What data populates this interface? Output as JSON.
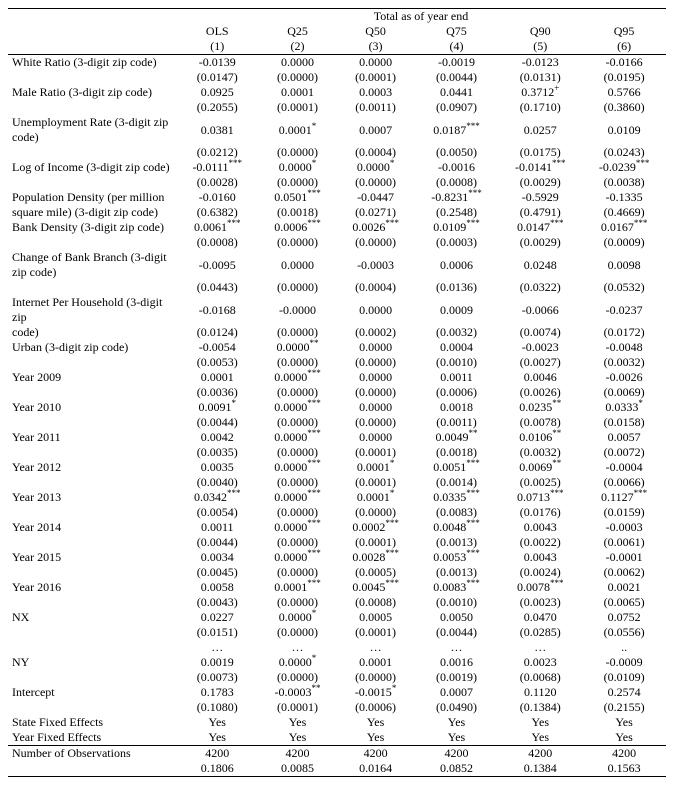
{
  "table": {
    "dependent_label": "Total as of year end",
    "columns": [
      {
        "head": "OLS",
        "num": "(1)"
      },
      {
        "head": "Q25",
        "num": "(2)"
      },
      {
        "head": "Q50",
        "num": "(3)"
      },
      {
        "head": "Q75",
        "num": "(4)"
      },
      {
        "head": "Q90",
        "num": "(5)"
      },
      {
        "head": "Q95",
        "num": "(6)"
      }
    ],
    "vars": [
      {
        "label": "White Ratio (3-digit zip code)",
        "b": [
          "-0.0139",
          "0.0000",
          "0.0000",
          "-0.0019",
          "-0.0123",
          "-0.0166"
        ],
        "se": [
          "(0.0147)",
          "(0.0000)",
          "(0.0001)",
          "(0.0044)",
          "(0.0131)",
          "(0.0195)"
        ],
        "sig": [
          "",
          "",
          "",
          "",
          "",
          ""
        ]
      },
      {
        "label": "Male Ratio (3-digit zip code)",
        "b": [
          "0.0925",
          "0.0001",
          "0.0003",
          "0.0441",
          "0.3712",
          "0.5766"
        ],
        "se": [
          "(0.2055)",
          "(0.0001)",
          "(0.0011)",
          "(0.0907)",
          "(0.1710)",
          "(0.3860)"
        ],
        "sig": [
          "",
          "",
          "",
          "",
          "+",
          ""
        ]
      },
      {
        "label": "Unemployment Rate (3-digit zip code)",
        "b": [
          "0.0381",
          "0.0001",
          "0.0007",
          "0.0187",
          "0.0257",
          "0.0109"
        ],
        "se": [
          "(0.0212)",
          "(0.0000)",
          "(0.0004)",
          "(0.0050)",
          "(0.0175)",
          "(0.0243)"
        ],
        "sig": [
          "",
          "*",
          "",
          "***",
          "",
          ""
        ]
      },
      {
        "label": "Log of Income (3-digit zip code)",
        "b": [
          "-0.0111",
          "0.0000",
          "0.0000",
          "-0.0016",
          "-0.0141",
          "-0.0239"
        ],
        "se": [
          "(0.0028)",
          "(0.0000)",
          "(0.0000)",
          "(0.0008)",
          "(0.0029)",
          "(0.0038)"
        ],
        "sig": [
          "***",
          "*",
          "*",
          "",
          "***",
          "***"
        ]
      },
      {
        "label": "Population Density (per million square mile) (3-digit zip code)",
        "b": [
          "-0.0160",
          "0.0501",
          "-0.0447",
          "-0.8231",
          "-0.5929",
          "-0.1335"
        ],
        "se": [
          "(0.6382)",
          "(0.0018)",
          "(0.0271)",
          "(0.2548)",
          "(0.4791)",
          "(0.4669)"
        ],
        "sig": [
          "",
          "***",
          "",
          "***",
          "",
          ""
        ]
      },
      {
        "label": "Bank Density (3-digit zip code)",
        "b": [
          "0.0061",
          "0.0006",
          "0.0026",
          "0.0109",
          "0.0147",
          "0.0167"
        ],
        "se": [
          "(0.0008)",
          "(0.0000)",
          "(0.0000)",
          "(0.0003)",
          "(0.0029)",
          "(0.0009)"
        ],
        "sig": [
          "***",
          "***",
          "***",
          "***",
          "***",
          "***"
        ]
      },
      {
        "label": "Change of Bank Branch (3-digit zip code)",
        "b": [
          "-0.0095",
          "0.0000",
          "-0.0003",
          "0.0006",
          "0.0248",
          "0.0098"
        ],
        "se": [
          "(0.0443)",
          "(0.0000)",
          "(0.0004)",
          "(0.0136)",
          "(0.0322)",
          "(0.0532)"
        ],
        "sig": [
          "",
          "",
          "",
          "",
          "",
          ""
        ]
      },
      {
        "label": "Internet Per Household (3-digit zip code)",
        "b": [
          "-0.0168",
          "-0.0000",
          "0.0000",
          "0.0009",
          "-0.0066",
          "-0.0237"
        ],
        "se": [
          "(0.0124)",
          "(0.0000)",
          "(0.0002)",
          "(0.0032)",
          "(0.0074)",
          "(0.0172)"
        ],
        "sig": [
          "",
          "",
          "",
          "",
          "",
          ""
        ]
      },
      {
        "label": "Urban (3-digit zip code)",
        "b": [
          "-0.0054",
          "0.0000",
          "0.0000",
          "0.0004",
          "-0.0023",
          "-0.0048"
        ],
        "se": [
          "(0.0053)",
          "(0.0000)",
          "(0.0000)",
          "(0.0010)",
          "(0.0027)",
          "(0.0032)"
        ],
        "sig": [
          "",
          "**",
          "",
          "",
          "",
          ""
        ]
      },
      {
        "label": "Year 2009",
        "b": [
          "0.0001",
          "0.0000",
          "0.0000",
          "0.0011",
          "0.0046",
          "-0.0026"
        ],
        "se": [
          "(0.0036)",
          "(0.0000)",
          "(0.0000)",
          "(0.0006)",
          "(0.0026)",
          "(0.0069)"
        ],
        "sig": [
          "",
          "***",
          "",
          "",
          "",
          ""
        ]
      },
      {
        "label": "Year 2010",
        "b": [
          "0.0091",
          "0.0000",
          "0.0000",
          "0.0018",
          "0.0235",
          "0.0333"
        ],
        "se": [
          "(0.0044)",
          "(0.0000)",
          "(0.0000)",
          "(0.0011)",
          "(0.0078)",
          "(0.0158)"
        ],
        "sig": [
          "*",
          "***",
          "",
          "",
          "**",
          "*"
        ]
      },
      {
        "label": "Year 2011",
        "b": [
          "0.0042",
          "0.0000",
          "0.0000",
          "0.0049",
          "0.0106",
          "0.0057"
        ],
        "se": [
          "(0.0035)",
          "(0.0000)",
          "(0.0001)",
          "(0.0018)",
          "(0.0032)",
          "(0.0072)"
        ],
        "sig": [
          "",
          "***",
          "",
          "**",
          "**",
          ""
        ]
      },
      {
        "label": "Year 2012",
        "b": [
          "0.0035",
          "0.0000",
          "0.0001",
          "0.0051",
          "0.0069",
          "-0.0004"
        ],
        "se": [
          "(0.0040)",
          "(0.0000)",
          "(0.0001)",
          "(0.0014)",
          "(0.0025)",
          "(0.0066)"
        ],
        "sig": [
          "",
          "***",
          "*",
          "***",
          "**",
          ""
        ]
      },
      {
        "label": "Year 2013",
        "b": [
          "0.0342",
          "0.0000",
          "0.0001",
          "0.0335",
          "0.0713",
          "0.1127"
        ],
        "se": [
          "(0.0054)",
          "(0.0000)",
          "(0.0000)",
          "(0.0083)",
          "(0.0176)",
          "(0.0159)"
        ],
        "sig": [
          "***",
          "***",
          "*",
          "***",
          "***",
          "***"
        ]
      },
      {
        "label": "Year 2014",
        "b": [
          "0.0011",
          "0.0000",
          "0.0002",
          "0.0048",
          "0.0043",
          "-0.0003"
        ],
        "se": [
          "(0.0044)",
          "(0.0000)",
          "(0.0001)",
          "(0.0013)",
          "(0.0022)",
          "(0.0061)"
        ],
        "sig": [
          "",
          "***",
          "***",
          "***",
          "",
          ""
        ]
      },
      {
        "label": "Year 2015",
        "b": [
          "0.0034",
          "0.0000",
          "0.0028",
          "0.0053",
          "0.0043",
          "-0.0001"
        ],
        "se": [
          "(0.0045)",
          "(0.0000)",
          "(0.0005)",
          "(0.0013)",
          "(0.0024)",
          "(0.0062)"
        ],
        "sig": [
          "",
          "***",
          "***",
          "***",
          "",
          ""
        ]
      },
      {
        "label": "Year 2016",
        "b": [
          "0.0058",
          "0.0001",
          "0.0045",
          "0.0083",
          "0.0078",
          "0.0021"
        ],
        "se": [
          "(0.0043)",
          "(0.0000)",
          "(0.0008)",
          "(0.0010)",
          "(0.0023)",
          "(0.0065)"
        ],
        "sig": [
          "",
          "***",
          "***",
          "***",
          "***",
          ""
        ]
      },
      {
        "label": "NX",
        "b": [
          "0.0227",
          "0.0000",
          "0.0005",
          "0.0050",
          "0.0470",
          "0.0752"
        ],
        "se": [
          "(0.0151)",
          "(0.0000)",
          "(0.0001)",
          "(0.0044)",
          "(0.0285)",
          "(0.0556)"
        ],
        "sig": [
          "",
          "*",
          "",
          "",
          "",
          ""
        ]
      },
      {
        "label": "",
        "b": [
          "…",
          "…",
          "…",
          "…",
          "…",
          ".."
        ],
        "se": null,
        "sig": [
          "",
          "",
          "",
          "",
          "",
          ""
        ]
      },
      {
        "label": "NY",
        "b": [
          "0.0019",
          "0.0000",
          "0.0001",
          "0.0016",
          "0.0023",
          "-0.0009"
        ],
        "se": [
          "(0.0073)",
          "(0.0000)",
          "(0.0000)",
          "(0.0019)",
          "(0.0068)",
          "(0.0109)"
        ],
        "sig": [
          "",
          "*",
          "",
          "",
          "",
          ""
        ]
      },
      {
        "label": "Intercept",
        "b": [
          "0.1783",
          "-0.0003",
          "-0.0015",
          "0.0007",
          "0.1120",
          "0.2574"
        ],
        "se": [
          "(0.1080)",
          "(0.0001)",
          "(0.0006)",
          "(0.0490)",
          "(0.1384)",
          "(0.2155)"
        ],
        "sig": [
          "",
          "**",
          "*",
          "",
          "",
          ""
        ]
      }
    ],
    "fixed_effects": [
      {
        "label": "State Fixed Effects",
        "vals": [
          "Yes",
          "Yes",
          "Yes",
          "Yes",
          "Yes",
          "Yes"
        ]
      },
      {
        "label": "Year Fixed Effects",
        "vals": [
          "Yes",
          "Yes",
          "Yes",
          "Yes",
          "Yes",
          "Yes"
        ]
      }
    ],
    "nobs": {
      "label": "Number of Observations",
      "vals": [
        "4200",
        "4200",
        "4200",
        "4200",
        "4200",
        "4200"
      ]
    },
    "bottom_stat": [
      "0.1806",
      "0.0085",
      "0.0164",
      "0.0852",
      "0.1384",
      "0.1563"
    ]
  }
}
